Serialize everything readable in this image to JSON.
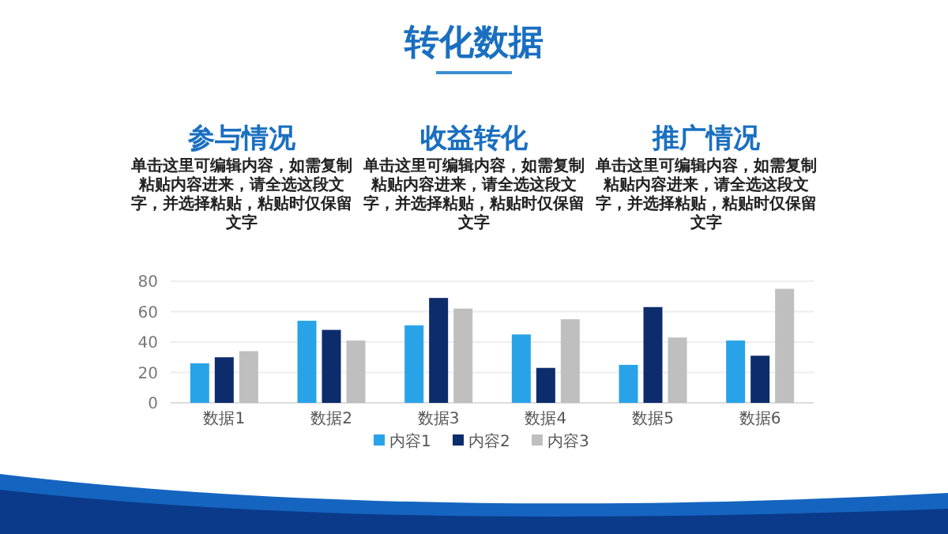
{
  "chart_data": {
    "type": "bar",
    "title": "转化数据",
    "annotations": [
      "参与情况",
      "单击这里可编辑内容，如需复制粘贴内容进来，请全选这段文字，并选择粘贴，粘贴时仅保留文字",
      "收益转化",
      "单击这里可编辑内容，如需复制粘贴内容进来，请全选这段文字，并选择粘贴，粘贴时仅保留文字",
      "推广情况",
      "单击这里可编辑内容，如需复制粘贴内容进来，请全选这段文字，并选择粘贴，粘贴时仅保留文字"
    ],
    "categories": [
      "数据1",
      "数据2",
      "数据3",
      "数据4",
      "数据5",
      "数据6"
    ],
    "series": [
      {
        "name": "内容1",
        "color": "#29a3e8",
        "values": [
          26,
          54,
          51,
          45,
          25,
          41
        ]
      },
      {
        "name": "内容2",
        "color": "#0d2c6c",
        "values": [
          30,
          48,
          69,
          23,
          63,
          31
        ]
      },
      {
        "name": "内容3",
        "color": "#bfbfbf",
        "values": [
          34,
          41,
          62,
          55,
          43,
          75
        ]
      }
    ],
    "ylim": [
      0,
      80
    ],
    "yticks": [
      0,
      20,
      40,
      60,
      80
    ],
    "grid": "y",
    "legend": "bottom"
  }
}
